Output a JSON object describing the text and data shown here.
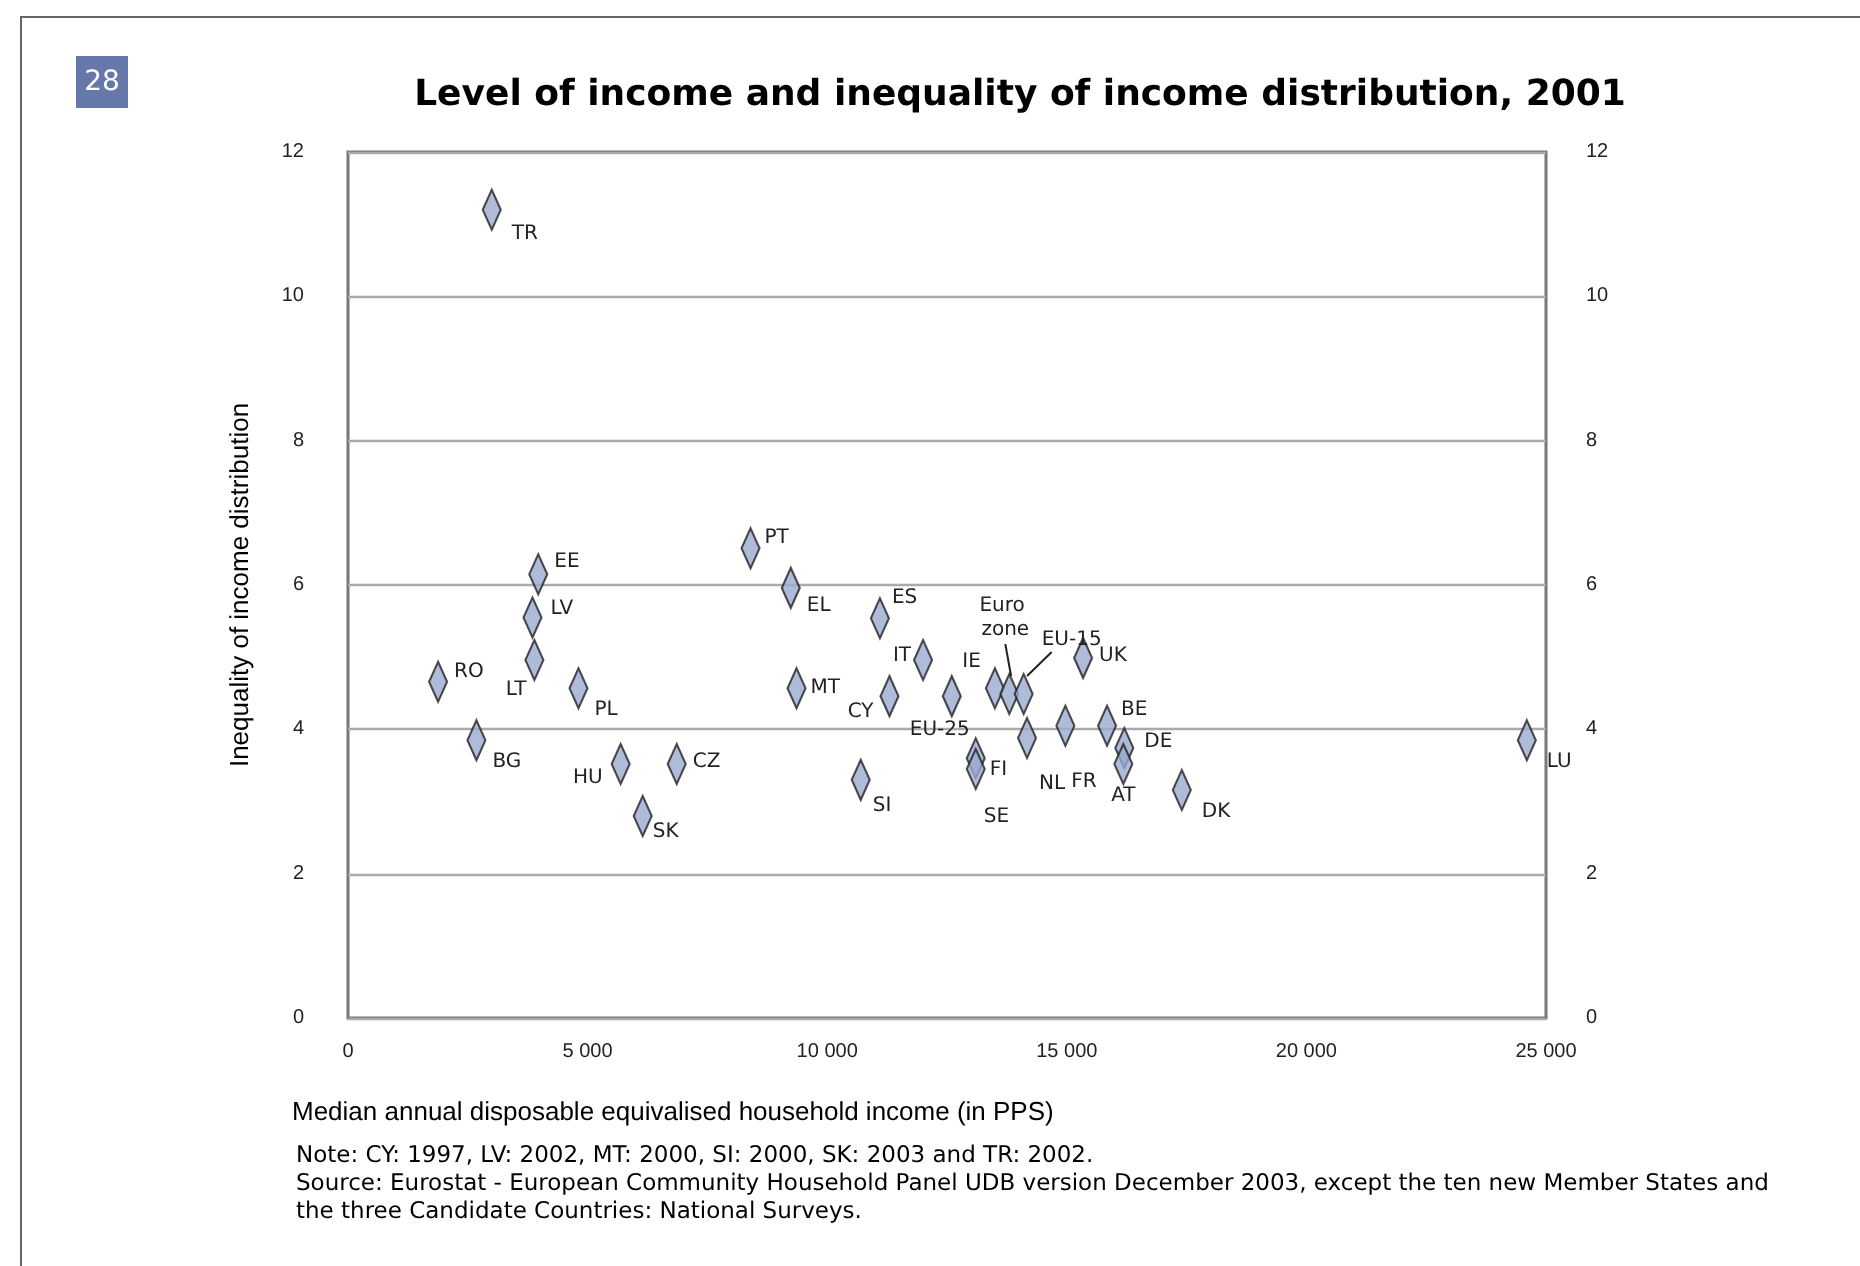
{
  "chart_data": {
    "type": "scatter",
    "title": "Level of income and inequality of income distribution, 2001",
    "xlabel": "Median annual disposable equivalised household income (in PPS)",
    "ylabel": "Inequality of income distribution",
    "x": [
      3000,
      3970,
      3850,
      3890,
      1880,
      4810,
      2680,
      5690,
      6860,
      6150,
      8400,
      9240,
      9360,
      10700,
      11100,
      12000,
      11300,
      12600,
      13500,
      13800,
      14100,
      13100,
      13100,
      14170,
      14970,
      15340,
      15840,
      16200,
      16180,
      17400,
      24600
    ],
    "values": [
      11.2,
      6.15,
      5.55,
      4.96,
      4.66,
      4.57,
      3.85,
      3.52,
      3.52,
      2.8,
      6.51,
      5.96,
      4.57,
      3.3,
      5.54,
      4.96,
      4.46,
      4.46,
      4.57,
      4.49,
      4.49,
      3.6,
      3.45,
      3.88,
      4.05,
      4.99,
      4.05,
      3.74,
      3.52,
      3.16,
      3.85
    ],
    "color": "#9aaad0",
    "marker": "diamond",
    "xlim": [
      0,
      25000
    ],
    "xticks": [
      {
        "value": 0,
        "label": "0"
      },
      {
        "value": 5000,
        "label": "5 000"
      },
      {
        "value": 10000,
        "label": "10 000"
      },
      {
        "value": 15000,
        "label": "15 000"
      },
      {
        "value": 20000,
        "label": "20 000"
      },
      {
        "value": 25000,
        "label": "25 000"
      }
    ],
    "ylim": [
      0,
      12
    ],
    "yticks": [
      0,
      2,
      4,
      6,
      8,
      10,
      12
    ],
    "y2lim": [
      0,
      12
    ],
    "y2ticks": [
      0,
      2,
      4,
      6,
      8,
      10,
      12
    ],
    "grid": "y",
    "annotations": [
      {
        "text": "TR",
        "x": 3000,
        "y": 11.2
      },
      {
        "text": "EE",
        "x": 3970,
        "y": 6.15
      },
      {
        "text": "LV",
        "x": 3850,
        "y": 5.55
      },
      {
        "text": "LT",
        "x": 3890,
        "y": 4.96
      },
      {
        "text": "RO",
        "x": 1880,
        "y": 4.66
      },
      {
        "text": "PL",
        "x": 4810,
        "y": 4.57
      },
      {
        "text": "BG",
        "x": 2680,
        "y": 3.85
      },
      {
        "text": "HU",
        "x": 5690,
        "y": 3.52
      },
      {
        "text": "CZ",
        "x": 6860,
        "y": 3.52
      },
      {
        "text": "SK",
        "x": 6150,
        "y": 2.8
      },
      {
        "text": "PT",
        "x": 8400,
        "y": 6.51
      },
      {
        "text": "EL",
        "x": 9240,
        "y": 5.96
      },
      {
        "text": "MT",
        "x": 9360,
        "y": 4.57
      },
      {
        "text": "SI",
        "x": 10700,
        "y": 3.3
      },
      {
        "text": "ES",
        "x": 11100,
        "y": 5.54
      },
      {
        "text": "IT",
        "x": 12000,
        "y": 4.96
      },
      {
        "text": "CY",
        "x": 11300,
        "y": 4.46
      },
      {
        "text": "EU-25",
        "x": 12600,
        "y": 4.46
      },
      {
        "text": "IE",
        "x": 13500,
        "y": 4.57
      },
      {
        "text": "Euro zone",
        "x": 13800,
        "y": 4.49
      },
      {
        "text": "EU-15",
        "x": 14100,
        "y": 4.49
      },
      {
        "text": "FI",
        "x": 13100,
        "y": 3.6
      },
      {
        "text": "SE",
        "x": 13100,
        "y": 3.45
      },
      {
        "text": "NL",
        "x": 14170,
        "y": 3.88
      },
      {
        "text": "FR",
        "x": 14970,
        "y": 4.05
      },
      {
        "text": "UK",
        "x": 15340,
        "y": 4.99
      },
      {
        "text": "BE",
        "x": 15840,
        "y": 4.05
      },
      {
        "text": "DE",
        "x": 16200,
        "y": 3.74
      },
      {
        "text": "AT",
        "x": 16180,
        "y": 3.52
      },
      {
        "text": "DK",
        "x": 17400,
        "y": 3.16
      },
      {
        "text": "LU",
        "x": 24600,
        "y": 3.85
      },
      "28",
      "Note: CY: 1997, LV: 2002, MT: 2000, SI: 2000, SK: 2003 and TR: 2002.",
      "Source: Eurostat - European Community Household Panel UDB version December 2003, except the ten new Member States and the three Candidate Countries: National Surveys."
    ]
  }
}
